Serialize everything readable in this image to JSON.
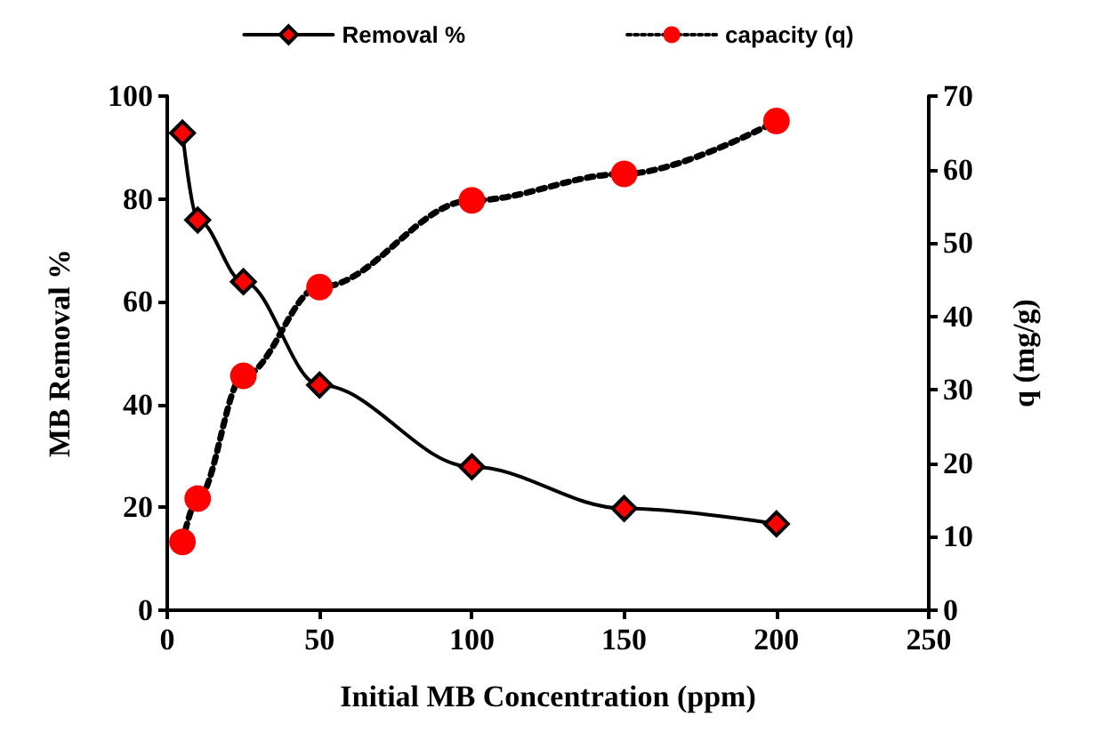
{
  "chart_data": {
    "type": "line",
    "xlabel": "Initial MB Concentration (ppm)",
    "ylabel": "MB Removal %",
    "y2label": "q (mg/g)",
    "x": [
      5,
      10,
      25,
      50,
      100,
      150,
      200
    ],
    "series": [
      {
        "name": "Removal %",
        "color": "#ff0000",
        "marker": "diamond",
        "line_style": "solid",
        "values": [
          92.8,
          75.9,
          63.9,
          43.8,
          27.9,
          19.8,
          16.8
        ]
      },
      {
        "name": "capacity (q)",
        "color": "#ff0000",
        "marker": "circle",
        "line_style": "dotted",
        "axis": "y2",
        "values": [
          9.3,
          15.2,
          31.9,
          44.0,
          55.8,
          59.4,
          66.6
        ]
      }
    ],
    "xlim": [
      0,
      250
    ],
    "xticks": [
      0,
      50,
      100,
      150,
      200,
      250
    ],
    "ylim": [
      0,
      100
    ],
    "yticks": [
      0,
      20,
      40,
      60,
      80,
      100
    ],
    "y2lim": [
      0,
      70
    ],
    "y2ticks": [
      0,
      10,
      20,
      30,
      40,
      50,
      60,
      70
    ],
    "grid": false,
    "legend": "top"
  }
}
